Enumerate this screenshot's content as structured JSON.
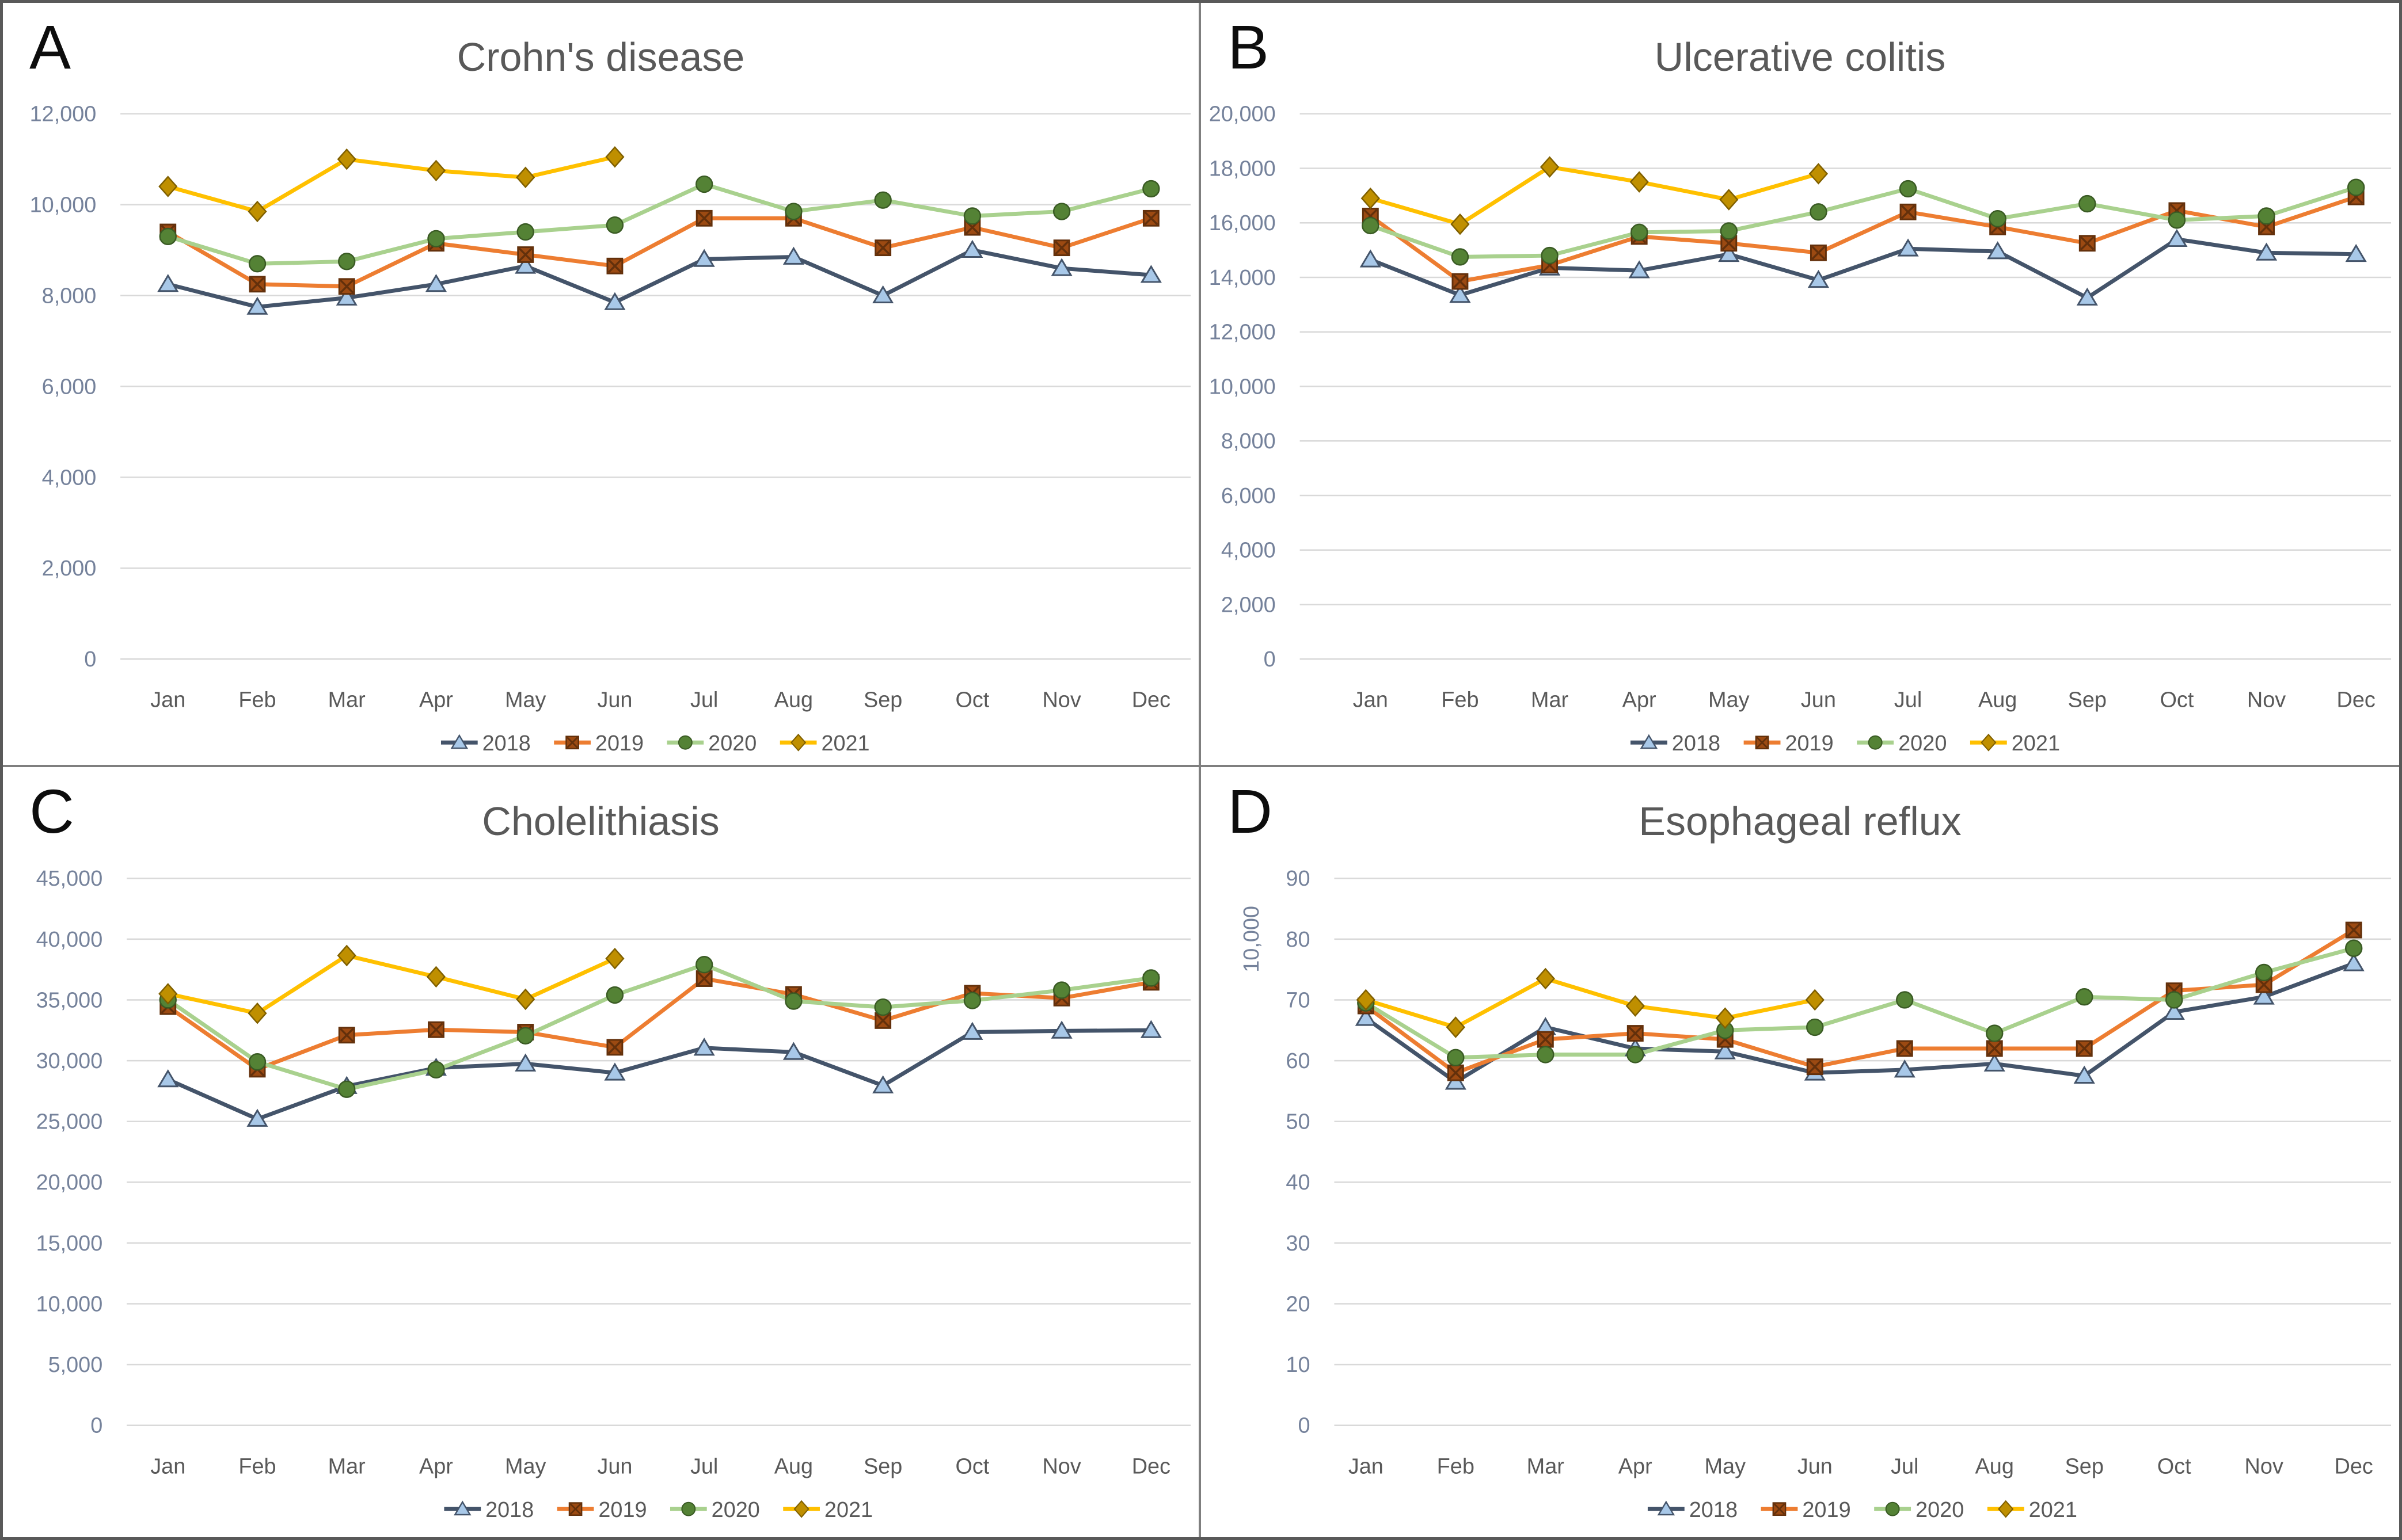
{
  "figure": {
    "type": "2x2 panel line chart figure",
    "background": "#ffffff",
    "outer_border_color": "#595959",
    "separator_color": "#7f7f7f"
  },
  "style": {
    "gridline_color": "#d9d9d9",
    "y_tick_text_color": "#75829b",
    "x_tick_text_color": "#595959",
    "legend_text_color": "#595959",
    "title_text_color": "#595959",
    "panel_letter_color": "#0d0d0d"
  },
  "series_styles": [
    {
      "name": "2018",
      "marker": "triangle-marker",
      "line_color": "#44546A",
      "marker_fill": "#A8C8E8",
      "marker_stroke": "#44546A"
    },
    {
      "name": "2019",
      "marker": "square-x-marker",
      "line_color": "#ED7D31",
      "marker_fill": "#9C4A12",
      "marker_stroke": "#63300B",
      "marker_x_color": "#63300B"
    },
    {
      "name": "2020",
      "marker": "circle-marker",
      "line_color": "#A9D18E",
      "marker_fill": "#548235",
      "marker_stroke": "#3A5B24"
    },
    {
      "name": "2021",
      "marker": "diamond-marker",
      "line_color": "#FFC000",
      "marker_fill": "#BF8F00",
      "marker_stroke": "#806000"
    }
  ],
  "chart_data": [
    {
      "id": "A",
      "letter": "A",
      "title": "Crohn's disease",
      "type": "line",
      "categories": [
        "Jan",
        "Feb",
        "Mar",
        "Apr",
        "May",
        "Jun",
        "Jul",
        "Aug",
        "Sep",
        "Oct",
        "Nov",
        "Dec"
      ],
      "ymax": 12000,
      "ytick_step": 2000,
      "ylim": [
        0,
        12000
      ],
      "grid": "horizontal",
      "legend_position": "bottom",
      "y_tick_labels": [
        "12,000",
        "10,000",
        "8,000",
        "6,000",
        "4,000",
        "2,000",
        "0"
      ],
      "series": [
        {
          "name": "2018",
          "values": [
            8250,
            7750,
            7950,
            8250,
            8650,
            7850,
            8800,
            8850,
            8000,
            9000,
            8600,
            8450
          ]
        },
        {
          "name": "2019",
          "values": [
            9400,
            8250,
            8200,
            9150,
            8900,
            8650,
            9700,
            9700,
            9050,
            9500,
            9050,
            9700
          ]
        },
        {
          "name": "2020",
          "values": [
            9300,
            8700,
            8750,
            9250,
            9400,
            9550,
            10450,
            9850,
            10100,
            9750,
            9850,
            10350
          ]
        },
        {
          "name": "2021",
          "values": [
            10400,
            9850,
            11000,
            10750,
            10600,
            11050
          ]
        }
      ]
    },
    {
      "id": "B",
      "letter": "B",
      "title": "Ulcerative colitis",
      "type": "line",
      "categories": [
        "Jan",
        "Feb",
        "Mar",
        "Apr",
        "May",
        "Jun",
        "Jul",
        "Aug",
        "Sep",
        "Oct",
        "Nov",
        "Dec"
      ],
      "ymax": 20000,
      "ytick_step": 2000,
      "ylim": [
        0,
        20000
      ],
      "grid": "horizontal",
      "legend_position": "bottom",
      "y_tick_labels": [
        "20,000",
        "18,000",
        "16,000",
        "14,000",
        "12,000",
        "10,000",
        "8,000",
        "6,000",
        "4,000",
        "2,000",
        "0"
      ],
      "series": [
        {
          "name": "2018",
          "values": [
            14650,
            13350,
            14350,
            14250,
            14850,
            13900,
            15050,
            14950,
            13250,
            15400,
            14900,
            14850
          ]
        },
        {
          "name": "2019",
          "values": [
            16250,
            13850,
            14450,
            15500,
            15250,
            14900,
            16400,
            15850,
            15250,
            16450,
            15850,
            16950
          ]
        },
        {
          "name": "2020",
          "values": [
            15900,
            14750,
            14800,
            15650,
            15700,
            16400,
            17250,
            16150,
            16700,
            16100,
            16250,
            17300
          ]
        },
        {
          "name": "2021",
          "values": [
            16900,
            15950,
            18050,
            17500,
            16850,
            17800
          ]
        }
      ]
    },
    {
      "id": "C",
      "letter": "C",
      "title": "Cholelithiasis",
      "type": "line",
      "categories": [
        "Jan",
        "Feb",
        "Mar",
        "Apr",
        "May",
        "Jun",
        "Jul",
        "Aug",
        "Sep",
        "Oct",
        "Nov",
        "Dec"
      ],
      "ymax": 45000,
      "ytick_step": 5000,
      "ylim": [
        0,
        45000
      ],
      "grid": "horizontal",
      "legend_position": "bottom",
      "y_tick_labels": [
        "45,000",
        "40,000",
        "35,000",
        "30,000",
        "25,000",
        "20,000",
        "15,000",
        "10,000",
        "5,000",
        "0"
      ],
      "series": [
        {
          "name": "2018",
          "values": [
            28450,
            25200,
            27900,
            29400,
            29750,
            29000,
            31050,
            30700,
            27950,
            32350,
            32450,
            32500
          ]
        },
        {
          "name": "2019",
          "values": [
            34450,
            29300,
            32100,
            32550,
            32350,
            31100,
            36750,
            35450,
            33300,
            35550,
            35150,
            36450
          ]
        },
        {
          "name": "2020",
          "values": [
            35000,
            29900,
            27650,
            29250,
            32050,
            35400,
            37900,
            34900,
            34400,
            34950,
            35800,
            36800
          ]
        },
        {
          "name": "2021",
          "values": [
            35500,
            33900,
            38650,
            36900,
            35050,
            38400
          ]
        }
      ]
    },
    {
      "id": "D",
      "letter": "D",
      "title": "Esophageal reflux",
      "type": "line",
      "categories": [
        "Jan",
        "Feb",
        "Mar",
        "Apr",
        "May",
        "Jun",
        "Jul",
        "Aug",
        "Sep",
        "Oct",
        "Nov",
        "Dec"
      ],
      "ymax": 90,
      "ytick_step": 10,
      "ylim": [
        0,
        90
      ],
      "grid": "horizontal",
      "legend_position": "bottom",
      "y_axis_unit_label": "10,000",
      "y_tick_labels": [
        "90",
        "80",
        "70",
        "60",
        "50",
        "40",
        "30",
        "20",
        "10",
        "0"
      ],
      "series": [
        {
          "name": "2018",
          "values": [
            67,
            56.5,
            65.5,
            62,
            61.5,
            58,
            58.5,
            59.5,
            57.5,
            68,
            70.5,
            76
          ]
        },
        {
          "name": "2019",
          "values": [
            69,
            58,
            63.5,
            64.5,
            63.5,
            59,
            62,
            62,
            62,
            71.5,
            72.5,
            81.5
          ]
        },
        {
          "name": "2020",
          "values": [
            69.5,
            60.5,
            61,
            61,
            65,
            65.5,
            70,
            64.5,
            70.5,
            70,
            74.5,
            78.5
          ]
        },
        {
          "name": "2021",
          "values": [
            70,
            65.5,
            73.5,
            69,
            67,
            70
          ]
        }
      ]
    }
  ]
}
